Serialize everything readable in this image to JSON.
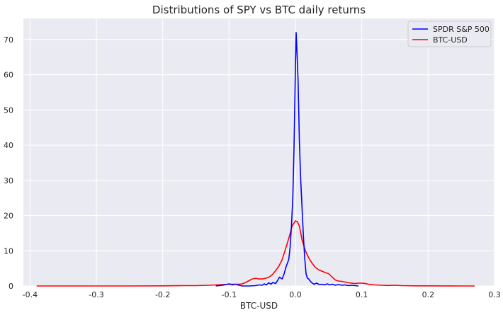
{
  "chart_data": {
    "type": "line",
    "title": "Distributions of SPY vs BTC daily returns",
    "xlabel": "BTC-USD",
    "ylabel": "",
    "xlim": [
      -0.41,
      0.3
    ],
    "ylim": [
      0,
      76
    ],
    "xticks": [
      -0.4,
      -0.3,
      -0.2,
      -0.1,
      0.0,
      0.1,
      0.2,
      0.3
    ],
    "xtick_labels": [
      "-0.4",
      "-0.3",
      "-0.2",
      "-0.1",
      "0.0",
      "0.1",
      "0.2",
      "0.3"
    ],
    "yticks": [
      0,
      10,
      20,
      30,
      40,
      50,
      60,
      70
    ],
    "ytick_labels": [
      "0",
      "10",
      "20",
      "30",
      "40",
      "50",
      "60",
      "70"
    ],
    "grid": true,
    "legend_position": "top-right",
    "series": [
      {
        "name": "SPDR S&P 500",
        "color": "#0000ff",
        "x": [
          -0.12,
          -0.11,
          -0.105,
          -0.1,
          -0.095,
          -0.09,
          -0.085,
          -0.08,
          -0.07,
          -0.06,
          -0.055,
          -0.05,
          -0.047,
          -0.044,
          -0.04,
          -0.037,
          -0.034,
          -0.03,
          -0.027,
          -0.024,
          -0.02,
          -0.017,
          -0.014,
          -0.01,
          -0.008,
          -0.006,
          -0.004,
          -0.002,
          0.0,
          0.001,
          0.002,
          0.004,
          0.006,
          0.008,
          0.01,
          0.012,
          0.014,
          0.016,
          0.018,
          0.02,
          0.024,
          0.028,
          0.032,
          0.036,
          0.04,
          0.044,
          0.048,
          0.052,
          0.056,
          0.06,
          0.065,
          0.07,
          0.075,
          0.08,
          0.085,
          0.09,
          0.095
        ],
        "y": [
          0,
          0.2,
          0.4,
          0.6,
          0.3,
          0.5,
          0.2,
          0,
          0,
          0.1,
          0.3,
          0.2,
          0.6,
          0.3,
          0.9,
          0.5,
          1.0,
          0.7,
          1.5,
          2.5,
          2.0,
          3.5,
          5.5,
          7.5,
          11,
          17,
          25,
          40,
          62,
          72,
          68,
          58,
          41,
          30,
          22,
          14,
          8,
          3.5,
          2.2,
          2.0,
          1.0,
          0.5,
          0.8,
          0.4,
          0.5,
          0.3,
          0.6,
          0.3,
          0.5,
          0.2,
          0.4,
          0.2,
          0.3,
          0.1,
          0.2,
          0.1,
          0
        ]
      },
      {
        "name": "BTC-USD",
        "color": "#ff0000",
        "x": [
          -0.39,
          -0.35,
          -0.3,
          -0.25,
          -0.2,
          -0.17,
          -0.15,
          -0.13,
          -0.12,
          -0.11,
          -0.1,
          -0.09,
          -0.085,
          -0.08,
          -0.075,
          -0.07,
          -0.065,
          -0.06,
          -0.055,
          -0.05,
          -0.045,
          -0.04,
          -0.035,
          -0.03,
          -0.025,
          -0.02,
          -0.015,
          -0.01,
          -0.005,
          0.0,
          0.003,
          0.006,
          0.01,
          0.015,
          0.02,
          0.025,
          0.03,
          0.035,
          0.04,
          0.045,
          0.05,
          0.055,
          0.06,
          0.065,
          0.07,
          0.075,
          0.08,
          0.085,
          0.09,
          0.095,
          0.1,
          0.105,
          0.11,
          0.12,
          0.13,
          0.14,
          0.15,
          0.16,
          0.18,
          0.2,
          0.22,
          0.25,
          0.27
        ],
        "y": [
          0,
          0,
          0,
          0,
          0.05,
          0.1,
          0.1,
          0.2,
          0.3,
          0.4,
          0.5,
          0.5,
          0.5,
          0.6,
          1.0,
          1.5,
          2.0,
          2.2,
          2.0,
          2.0,
          2.2,
          2.5,
          3.2,
          4.3,
          5.6,
          7.5,
          10.5,
          13.5,
          17.0,
          18.5,
          18.2,
          17.0,
          13.0,
          10.0,
          8.0,
          6.5,
          5.3,
          4.6,
          4.2,
          3.8,
          3.5,
          2.6,
          1.7,
          1.4,
          1.3,
          1.1,
          0.9,
          0.8,
          0.7,
          0.8,
          0.8,
          0.7,
          0.5,
          0.3,
          0.2,
          0.15,
          0.2,
          0.1,
          0.05,
          0.05,
          0.02,
          0,
          0
        ]
      }
    ]
  }
}
